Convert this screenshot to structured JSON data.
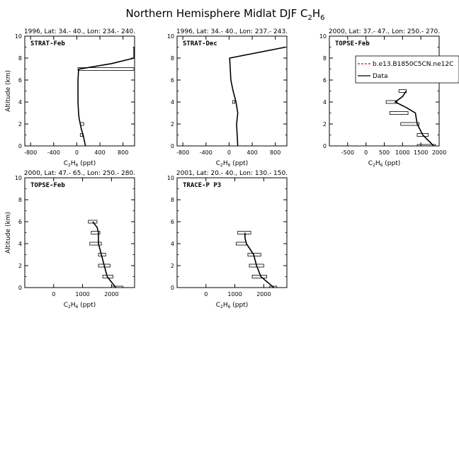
{
  "figure": {
    "title": "Northern Hemisphere Midlat DJF C",
    "title_sub": "2",
    "title_mid": "H",
    "title_sub2": "6"
  },
  "legend": {
    "entries": [
      {
        "label": "b.e13.B1850C5CN.ne12C",
        "color": "#ff0000",
        "style": "dashed"
      },
      {
        "label": "Data",
        "color": "#000000",
        "style": "solid"
      }
    ]
  },
  "chart_data": [
    {
      "type": "line",
      "header": "1996, Lat: 34.- 40., Lon: 234.- 240.",
      "panel_label": "STRAT-Feb",
      "xlabel": "C2H6 (ppt)",
      "ylabel": "Altitude (km)",
      "xlim": [
        -900,
        1000
      ],
      "ylim": [
        0,
        10
      ],
      "xticks": [
        -800,
        -400,
        0,
        400,
        800
      ],
      "yticks": [
        0,
        2,
        4,
        6,
        8,
        10
      ],
      "series": [
        {
          "x": [
            150,
            130,
            110,
            80,
            60,
            40,
            30,
            20,
            20,
            20,
            30,
            40,
            600,
            990,
            990,
            990
          ],
          "y": [
            0,
            0.5,
            1,
            1.5,
            2,
            2.5,
            3,
            4,
            5,
            6,
            6.9,
            7.0,
            7.5,
            8.0,
            8.5,
            9.0
          ]
        }
      ],
      "ranges": [
        {
          "y": 1.0,
          "min": 60,
          "max": 100
        },
        {
          "y": 2.0,
          "min": 60,
          "max": 120
        },
        {
          "y": 7.0,
          "min": 20,
          "max": 1000
        }
      ]
    },
    {
      "type": "line",
      "header": "1996, Lat: 34.- 40., Lon: 237.- 243.",
      "panel_label": "STRAT-Dec",
      "xlabel": "C2H6 (ppt)",
      "ylabel": "",
      "xlim": [
        -900,
        1000
      ],
      "ylim": [
        0,
        10
      ],
      "xticks": [
        -800,
        -400,
        0,
        400,
        800
      ],
      "yticks": [
        0,
        2,
        4,
        6,
        8,
        10
      ],
      "series": [
        {
          "x": [
            150,
            140,
            130,
            150,
            120,
            70,
            30,
            20,
            10,
            980
          ],
          "y": [
            0,
            1,
            2,
            3,
            4,
            5,
            6,
            7,
            8,
            9
          ]
        }
      ],
      "ranges": [
        {
          "y": 4.0,
          "min": 60,
          "max": 100
        }
      ]
    },
    {
      "type": "line",
      "header": "2000, Lat: 37.- 47., Lon: 250.- 270.",
      "panel_label": "TOPSE-Feb",
      "xlabel": "C2H6 (ppt)",
      "ylabel": "",
      "xlim": [
        -1000,
        2000
      ],
      "ylim": [
        0,
        10
      ],
      "xticks": [
        -500,
        0,
        500,
        1000,
        1500,
        2000
      ],
      "yticks": [
        0,
        2,
        4,
        6,
        8,
        10
      ],
      "series": [
        {
          "x": [
            1850,
            1550,
            1400,
            1350,
            1100,
            800,
            1000,
            1100
          ],
          "y": [
            0,
            1,
            2,
            3,
            3.5,
            4,
            4.5,
            5
          ]
        }
      ],
      "ranges": [
        {
          "y": 0,
          "min": 1400,
          "max": 1900
        },
        {
          "y": 1,
          "min": 1400,
          "max": 1700
        },
        {
          "y": 2,
          "min": 950,
          "max": 1450
        },
        {
          "y": 3,
          "min": 650,
          "max": 1150
        },
        {
          "y": 4,
          "min": 550,
          "max": 850
        },
        {
          "y": 5,
          "min": 900,
          "max": 1100
        }
      ]
    },
    {
      "type": "line",
      "header": "2000, Lat: 47.- 65., Lon: 250.- 280.",
      "panel_label": "TOPSE-Feb",
      "xlabel": "C2H6 (ppt)",
      "ylabel": "Altitude (km)",
      "xlim": [
        -1000,
        2800
      ],
      "ylim": [
        0,
        10
      ],
      "xticks": [
        0,
        1000,
        2000
      ],
      "yticks": [
        0,
        2,
        4,
        6,
        8,
        10
      ],
      "series": [
        {
          "x": [
            2150,
            1850,
            1750,
            1650,
            1550,
            1550,
            1500,
            1350
          ],
          "y": [
            0,
            1,
            2,
            3,
            4,
            5,
            5.5,
            6
          ]
        }
      ],
      "ranges": [
        {
          "y": 0,
          "min": 2000,
          "max": 2400
        },
        {
          "y": 1,
          "min": 1700,
          "max": 2050
        },
        {
          "y": 2,
          "min": 1550,
          "max": 1950
        },
        {
          "y": 3,
          "min": 1550,
          "max": 1800
        },
        {
          "y": 4,
          "min": 1250,
          "max": 1650
        },
        {
          "y": 5,
          "min": 1300,
          "max": 1600
        },
        {
          "y": 6,
          "min": 1200,
          "max": 1500
        }
      ]
    },
    {
      "type": "line",
      "header": "2001, Lat: 20.- 40., Lon: 130.- 150.",
      "panel_label": "TRACE-P P3",
      "xlabel": "C2H6 (ppt)",
      "ylabel": "",
      "xlim": [
        -1000,
        2800
      ],
      "ylim": [
        0,
        10
      ],
      "xticks": [
        0,
        1000,
        2000
      ],
      "yticks": [
        0,
        2,
        4,
        6,
        8,
        10
      ],
      "series": [
        {
          "x": [
            2350,
            1900,
            1750,
            1650,
            1400,
            1350,
            1350
          ],
          "y": [
            0,
            1,
            2,
            3,
            4,
            4.5,
            5
          ]
        }
      ],
      "ranges": [
        {
          "y": 0,
          "min": 2200,
          "max": 2450
        },
        {
          "y": 1,
          "min": 1600,
          "max": 2100
        },
        {
          "y": 2,
          "min": 1500,
          "max": 2000
        },
        {
          "y": 3,
          "min": 1450,
          "max": 1900
        },
        {
          "y": 4,
          "min": 1050,
          "max": 1400
        },
        {
          "y": 5,
          "min": 1100,
          "max": 1550
        }
      ]
    }
  ]
}
